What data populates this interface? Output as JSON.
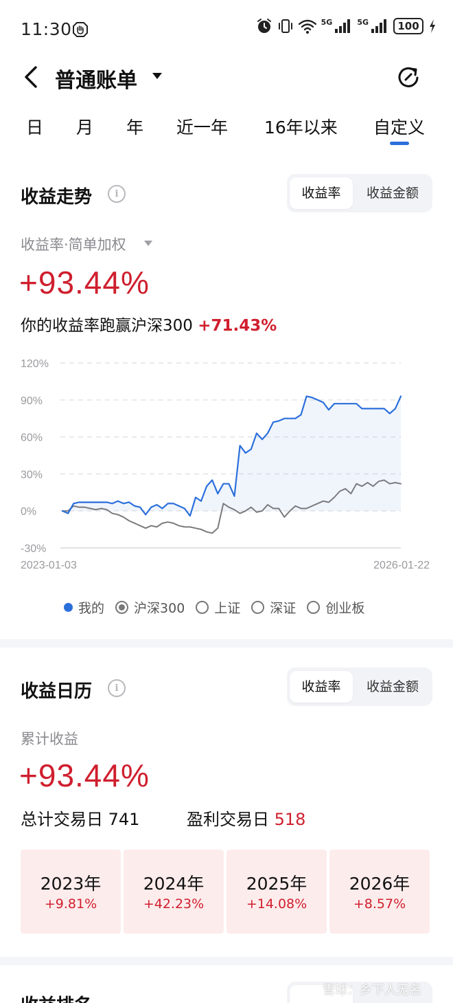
{
  "status_bar": {
    "time": "11:30",
    "network_1": "5G",
    "network_2": "5G",
    "battery": "100"
  },
  "nav": {
    "title": "普通账单"
  },
  "period_tabs": [
    {
      "label": "日"
    },
    {
      "label": "月"
    },
    {
      "label": "年"
    },
    {
      "label": "近一年"
    },
    {
      "label": "16年以来"
    },
    {
      "label": "自定义",
      "active": true
    }
  ],
  "trend": {
    "title": "收益走势",
    "toggle": {
      "rate_label": "收益率",
      "amount_label": "收益金额",
      "selected": "收益率"
    },
    "metric_label": "收益率·简单加权",
    "value": "+93.44%",
    "compare_prefix": "你的收益率跑赢沪深300",
    "compare_value": "+71.43%"
  },
  "chart_data": {
    "type": "line",
    "x_start_label": "2023-01-03",
    "x_end_label": "2026-01-22",
    "y_ticks": [
      "120%",
      "90%",
      "60%",
      "30%",
      "0%",
      "-30%"
    ],
    "ylim": [
      -30,
      120
    ],
    "grid": true,
    "series": [
      {
        "name": "我的",
        "color": "#2b6fdb",
        "values": [
          0,
          -2,
          6,
          7,
          7,
          7,
          7,
          7,
          7,
          6,
          8,
          6,
          7,
          4,
          3,
          -3,
          3,
          5,
          2,
          6,
          6,
          4,
          2,
          -4,
          11,
          8,
          20,
          25,
          14,
          22,
          22,
          12,
          53,
          47,
          50,
          63,
          58,
          63,
          72,
          73,
          75,
          75,
          75,
          78,
          93,
          92,
          90,
          88,
          82,
          87,
          87,
          87,
          87,
          87,
          83,
          83,
          83,
          83,
          83,
          79,
          83,
          93
        ]
      },
      {
        "name": "沪深300",
        "color": "#7b7b7f",
        "values": [
          0,
          0,
          4,
          3,
          3,
          2,
          1,
          2,
          1,
          -2,
          -3,
          -5,
          -8,
          -10,
          -12,
          -14,
          -12,
          -13,
          -10,
          -9,
          -10,
          -12,
          -13,
          -13,
          -14,
          -15,
          -17,
          -18,
          -14,
          6,
          3,
          1,
          -2,
          0,
          3,
          -1,
          0,
          5,
          2,
          2,
          -5,
          0,
          4,
          2,
          2,
          4,
          6,
          8,
          7,
          11,
          16,
          18,
          14,
          22,
          20,
          23,
          20,
          24,
          25,
          22,
          23,
          22
        ]
      }
    ],
    "legend": [
      {
        "label": "我的",
        "style": "dot",
        "color": "#2b6fdb"
      },
      {
        "label": "沪深300",
        "style": "ring-checked"
      },
      {
        "label": "上证",
        "style": "ring"
      },
      {
        "label": "深证",
        "style": "ring"
      },
      {
        "label": "创业板",
        "style": "ring"
      }
    ]
  },
  "calendar": {
    "title": "收益日历",
    "toggle": {
      "rate_label": "收益率",
      "amount_label": "收益金额",
      "selected": "收益率"
    },
    "cum_label": "累计收益",
    "cum_value": "+93.44%",
    "total_days_label": "总计交易日",
    "total_days": "741",
    "profit_days_label": "盈利交易日",
    "profit_days": "518",
    "years": [
      {
        "year": "2023年",
        "pct": "+9.81%"
      },
      {
        "year": "2024年",
        "pct": "+42.23%"
      },
      {
        "year": "2025年",
        "pct": "+14.08%"
      },
      {
        "year": "2026年",
        "pct": "+8.57%"
      }
    ]
  },
  "ranking": {
    "title": "收益排名"
  },
  "watermark": "雪球：乡下人无名",
  "colors": {
    "accent_blue": "#2b6fdb",
    "gain_red": "#cf1f2e",
    "benchmark_grey": "#7b7b7f",
    "card_pink": "#fdecec"
  }
}
